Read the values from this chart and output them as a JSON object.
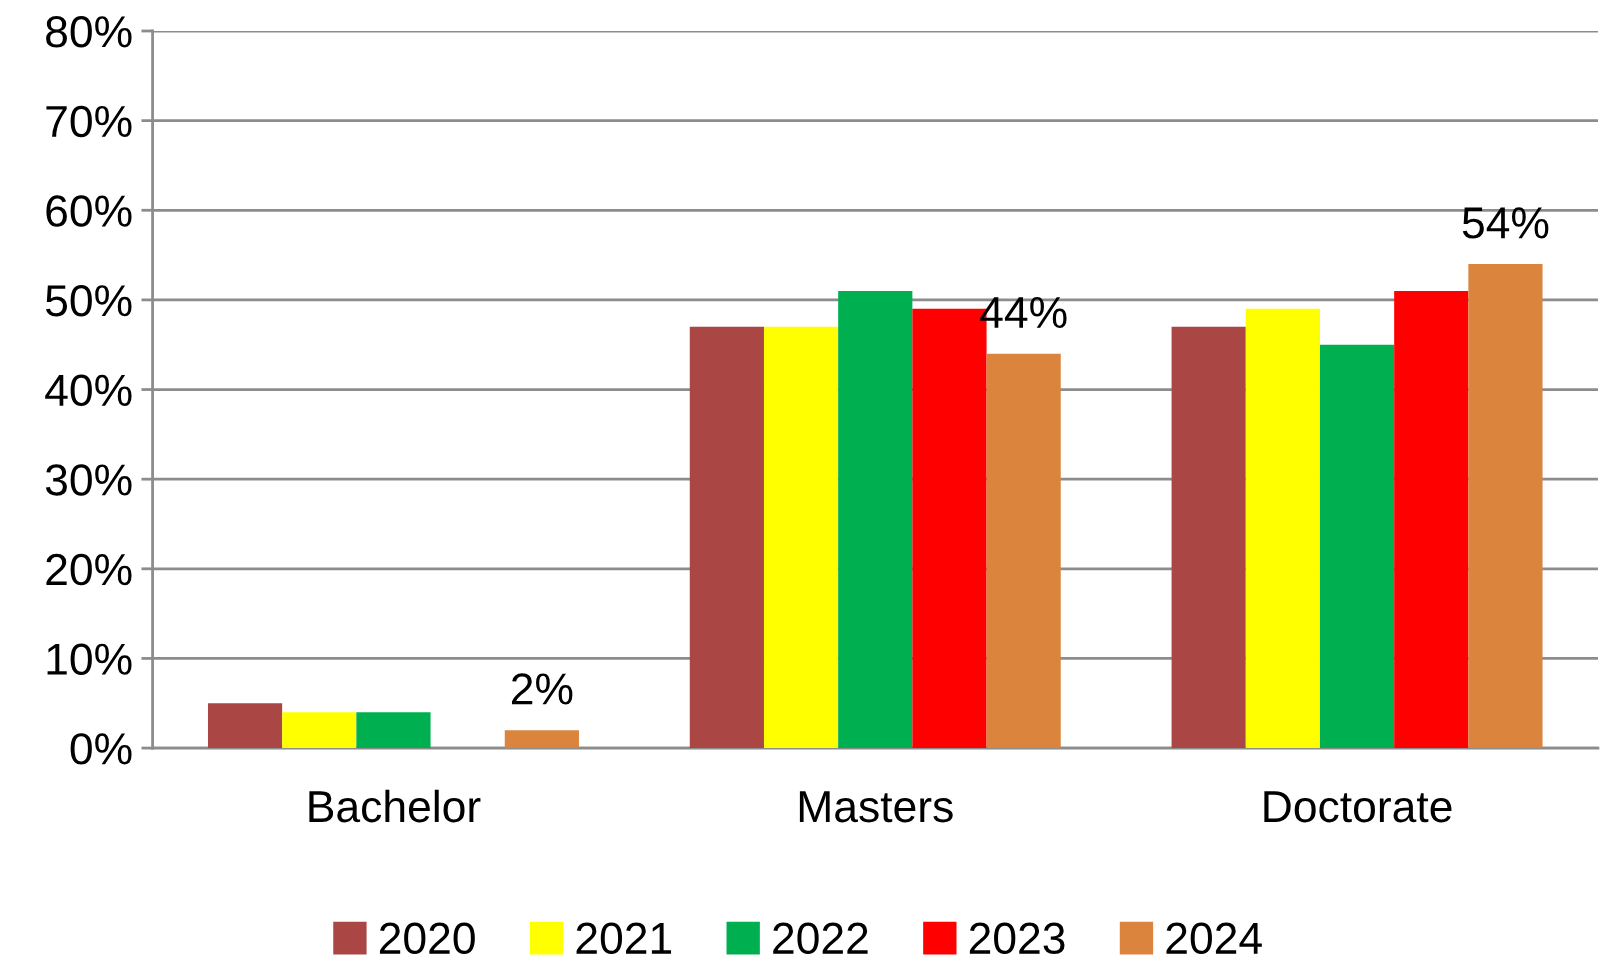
{
  "chart_data": {
    "type": "bar",
    "categories": [
      "Bachelor",
      "Masters",
      "Doctorate"
    ],
    "series": [
      {
        "name": "2020",
        "color": "#aa4644",
        "values": [
          5,
          47,
          47
        ]
      },
      {
        "name": "2021",
        "color": "#ffff00",
        "values": [
          4,
          47,
          49
        ]
      },
      {
        "name": "2022",
        "color": "#00b050",
        "values": [
          4,
          51,
          45
        ]
      },
      {
        "name": "2023",
        "color": "#ff0000",
        "values": [
          null,
          49,
          51
        ]
      },
      {
        "name": "2024",
        "color": "#db843d",
        "values": [
          2,
          44,
          54
        ],
        "value_labels": [
          "2%",
          "44%",
          "54%"
        ]
      }
    ],
    "ylim": [
      0,
      80
    ],
    "yticks": [
      {
        "value": 0,
        "label": "0%"
      },
      {
        "value": 10,
        "label": "10%"
      },
      {
        "value": 20,
        "label": "20%"
      },
      {
        "value": 30,
        "label": "30%"
      },
      {
        "value": 40,
        "label": "40%"
      },
      {
        "value": 50,
        "label": "50%"
      },
      {
        "value": 60,
        "label": "60%"
      },
      {
        "value": 70,
        "label": "70%"
      },
      {
        "value": 80,
        "label": "80%"
      }
    ],
    "grid": "y",
    "legend": "bottom"
  }
}
